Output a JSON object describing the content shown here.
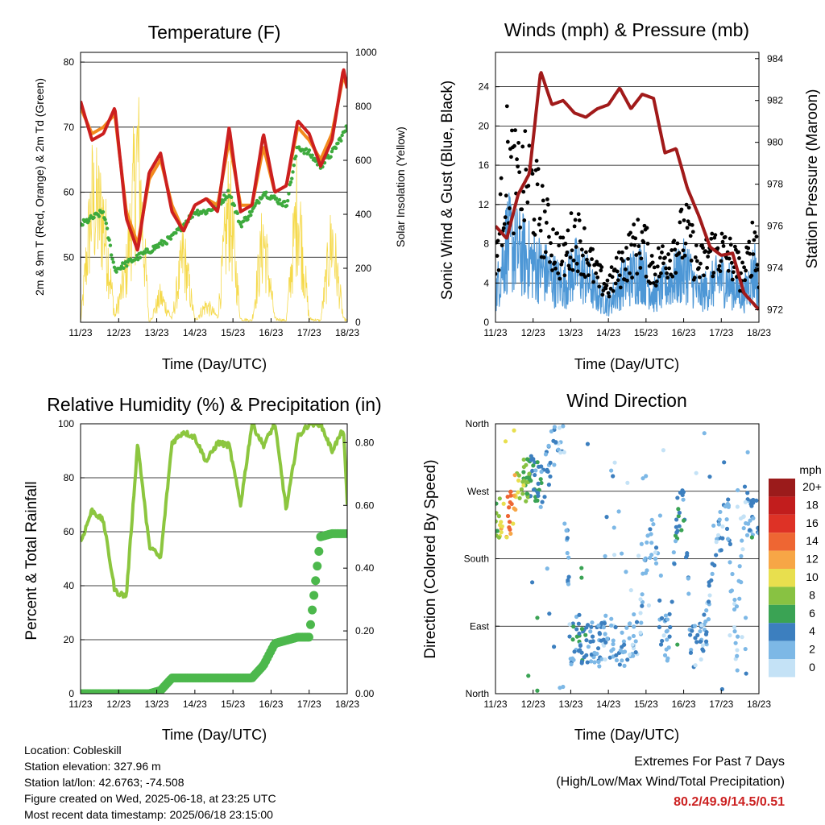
{
  "panels": {
    "temperature": {
      "title": "Temperature (F)",
      "ylabel_left": "2m & 9m T (Red, Orange) & 2m Td (Green)",
      "ylabel_right": "Solar Insolation (Yellow)",
      "xlabel": "Time (Day/UTC)"
    },
    "winds": {
      "title": "Winds (mph) & Pressure (mb)",
      "ylabel_left": "Sonic Wind & Gust (Blue, Black)",
      "ylabel_right": "Station Pressure (Maroon)",
      "xlabel": "Time (Day/UTC)"
    },
    "humidity": {
      "title": "Relative Humidity (%) & Precipitation (in)",
      "ylabel_left": "Percent & Total Rainfall",
      "xlabel": "Time (Day/UTC)"
    },
    "direction": {
      "title": "Wind Direction",
      "ylabel_left": "Direction (Colored By Speed)",
      "xlabel": "Time (Day/UTC)",
      "legend_title": "mph"
    }
  },
  "x_ticks": [
    "11/23",
    "12/23",
    "13/23",
    "14/23",
    "15/23",
    "16/23",
    "17/23",
    "18/23"
  ],
  "info": {
    "location": "Location: Cobleskill",
    "elevation": "Station elevation: 327.96 m",
    "latlon": "Station lat/lon: 42.6763; -74.508",
    "created": "Figure created on Wed, 2025-06-18, at 23:25 UTC",
    "recent": "Most recent data timestamp: 2025/06/18 23:15:00"
  },
  "extremes": {
    "heading": "Extremes For Past 7 Days",
    "subheading": "(High/Low/Max Wind/Total Precipitation)",
    "values": "80.2/49.9/14.5/0.51"
  },
  "colors": {
    "temp2m": "#cc1f1f",
    "temp9m": "#f28a1e",
    "dewpoint": "#3daa3d",
    "solar": "#f5d94a",
    "wind": "#4d97d6",
    "gust": "#000000",
    "pressure": "#a11a1a",
    "rh": "#8cc63f",
    "precip": "#4cb84c"
  },
  "chart_data": [
    {
      "type": "line",
      "title": "Temperature (F)",
      "xlabel": "Time (Day/UTC)",
      "ylabel": "2m & 9m T (Red, Orange) & 2m Td (Green)",
      "ylabel_right": "Solar Insolation (Yellow)",
      "ylim": [
        40,
        81.5
      ],
      "y_ticks": [
        50,
        60,
        70,
        80
      ],
      "ylim_right": [
        0,
        1000
      ],
      "y_ticks_right": [
        0,
        200,
        400,
        600,
        800,
        1000
      ],
      "x": [
        11,
        11.3,
        11.6,
        11.9,
        12.2,
        12.5,
        12.8,
        13.1,
        13.4,
        13.7,
        14,
        14.3,
        14.6,
        14.9,
        15.2,
        15.5,
        15.8,
        16.1,
        16.4,
        16.7,
        17,
        17.3,
        17.6,
        17.9,
        18
      ],
      "series": [
        {
          "name": "2m T",
          "values": [
            74,
            68,
            69,
            73,
            56,
            51,
            63,
            66,
            57,
            54,
            58,
            59,
            57,
            70,
            57,
            58,
            69,
            60,
            61,
            71,
            69,
            64,
            68,
            79,
            76
          ]
        },
        {
          "name": "9m T",
          "values": [
            73,
            69,
            70,
            72,
            57,
            52,
            62,
            65,
            58,
            54,
            58,
            59,
            58,
            68,
            58,
            58,
            67,
            60,
            61,
            70,
            68,
            65,
            69,
            78,
            76
          ]
        },
        {
          "name": "2m Td",
          "values": [
            55,
            56,
            57,
            48,
            49,
            50,
            51,
            52,
            53,
            55,
            57,
            57,
            58,
            60,
            55,
            57,
            60,
            59,
            58,
            67,
            66,
            64,
            66,
            69,
            70
          ]
        },
        {
          "name": "Solar Insolation",
          "axis": "right",
          "values": [
            0,
            700,
            600,
            30,
            300,
            980,
            0,
            150,
            20,
            400,
            10,
            100,
            30,
            700,
            20,
            10,
            500,
            20,
            10,
            700,
            20,
            10,
            500,
            20,
            10
          ]
        }
      ]
    },
    {
      "type": "line",
      "title": "Winds (mph) & Pressure (mb)",
      "xlabel": "Time (Day/UTC)",
      "ylabel": "Sonic Wind & Gust (Blue, Black)",
      "ylabel_right": "Station Pressure (Maroon)",
      "ylim": [
        0,
        27.5
      ],
      "y_ticks": [
        0,
        4,
        8,
        12,
        16,
        20,
        24
      ],
      "ylim_right": [
        971.4,
        984.3
      ],
      "y_ticks_right": [
        972,
        974,
        976,
        978,
        980,
        982,
        984
      ],
      "x": [
        11,
        11.3,
        11.6,
        11.9,
        12.2,
        12.5,
        12.8,
        13.1,
        13.4,
        13.7,
        14,
        14.3,
        14.6,
        14.9,
        15.2,
        15.5,
        15.8,
        16.1,
        16.4,
        16.7,
        17,
        17.3,
        17.6,
        17.9,
        18
      ],
      "series": [
        {
          "name": "Sonic Wind",
          "values": [
            3,
            9,
            8,
            7,
            6,
            5,
            4,
            6,
            5,
            3,
            2,
            4,
            5,
            6,
            3,
            4,
            5,
            6,
            3,
            4,
            5,
            4,
            3,
            6,
            3
          ]
        },
        {
          "name": "Gust",
          "values": [
            6,
            18,
            15,
            16,
            12,
            9,
            7,
            10,
            8,
            5,
            4,
            6,
            8,
            9,
            6,
            7,
            9,
            10,
            6,
            8,
            8,
            7,
            5,
            10,
            5
          ]
        },
        {
          "name": "Station Pressure",
          "axis": "right",
          "values": [
            976,
            975.4,
            977.5,
            978.5,
            983.4,
            981.8,
            982,
            981.4,
            981.2,
            981.6,
            981.8,
            982.6,
            981.6,
            982.3,
            982.1,
            979.5,
            979.7,
            977.8,
            976.5,
            975,
            974.6,
            974.7,
            972.8,
            972.2,
            972
          ]
        }
      ]
    },
    {
      "type": "line",
      "title": "Relative Humidity (%) & Precipitation (in)",
      "xlabel": "Time (Day/UTC)",
      "ylabel": "Percent & Total Rainfall",
      "ylim": [
        0,
        100
      ],
      "y_ticks": [
        0,
        20,
        40,
        60,
        80,
        100
      ],
      "ylim_right": [
        0,
        0.86
      ],
      "y_ticks_right": [
        0.0,
        0.2,
        0.4,
        0.6,
        0.8
      ],
      "x": [
        11,
        11.3,
        11.6,
        11.9,
        12.2,
        12.5,
        12.8,
        13.1,
        13.4,
        13.7,
        14,
        14.3,
        14.6,
        14.9,
        15.2,
        15.5,
        15.8,
        16.1,
        16.4,
        16.7,
        17,
        17.3,
        17.6,
        17.9,
        18
      ],
      "series": [
        {
          "name": "Relative Humidity",
          "values": [
            56,
            68,
            64,
            38,
            36,
            93,
            55,
            50,
            93,
            97,
            95,
            86,
            93,
            92,
            70,
            100,
            92,
            100,
            68,
            95,
            100,
            100,
            90,
            98,
            70
          ]
        },
        {
          "name": "Total Precipitation",
          "axis": "right",
          "values": [
            0,
            0,
            0,
            0,
            0,
            0,
            0,
            0.01,
            0.05,
            0.05,
            0.05,
            0.05,
            0.05,
            0.05,
            0.05,
            0.05,
            0.09,
            0.16,
            0.17,
            0.18,
            0.18,
            0.5,
            0.51,
            0.51,
            0.51
          ]
        }
      ]
    },
    {
      "type": "scatter",
      "title": "Wind Direction",
      "xlabel": "Time (Day/UTC)",
      "ylabel": "Direction (Colored By Speed)",
      "y_ticks": [
        "North",
        "East",
        "South",
        "West",
        "North"
      ],
      "legend_title": "mph",
      "legend_labels": [
        "20+",
        "18",
        "16",
        "14",
        "12",
        "10",
        "8",
        "6",
        "4",
        "2",
        "0"
      ],
      "legend_colors": [
        "#9b1b1b",
        "#c21d1d",
        "#de3226",
        "#ee6633",
        "#f7a646",
        "#e8df4e",
        "#88c242",
        "#3aa354",
        "#3c7fbf",
        "#7db8e6",
        "#c4e2f6"
      ],
      "x": [
        11,
        11.2,
        11.4,
        11.6,
        11.8,
        12,
        12.2,
        12.4,
        12.6,
        12.8,
        13,
        13.2,
        13.4,
        13.6,
        13.8,
        14,
        14.2,
        14.4,
        14.6,
        14.8,
        15,
        15.2,
        15.4,
        15.6,
        15.8,
        16,
        16.2,
        16.4,
        16.6,
        16.8,
        17,
        17.2,
        17.4,
        17.6,
        17.8,
        18
      ],
      "direction": [
        230,
        235,
        240,
        280,
        285,
        290,
        275,
        300,
        340,
        355,
        60,
        80,
        60,
        70,
        65,
        70,
        75,
        60,
        80,
        70,
        180,
        210,
        90,
        70,
        230,
        250,
        60,
        70,
        80,
        210,
        220,
        230,
        60,
        250,
        230,
        240
      ],
      "speed": [
        8,
        12,
        14,
        10,
        8,
        6,
        5,
        4,
        4,
        2,
        4,
        6,
        5,
        4,
        4,
        3,
        3,
        4,
        3,
        2,
        3,
        2,
        4,
        3,
        6,
        5,
        4,
        3,
        3,
        4,
        3,
        3,
        2,
        3,
        5,
        4
      ]
    }
  ]
}
